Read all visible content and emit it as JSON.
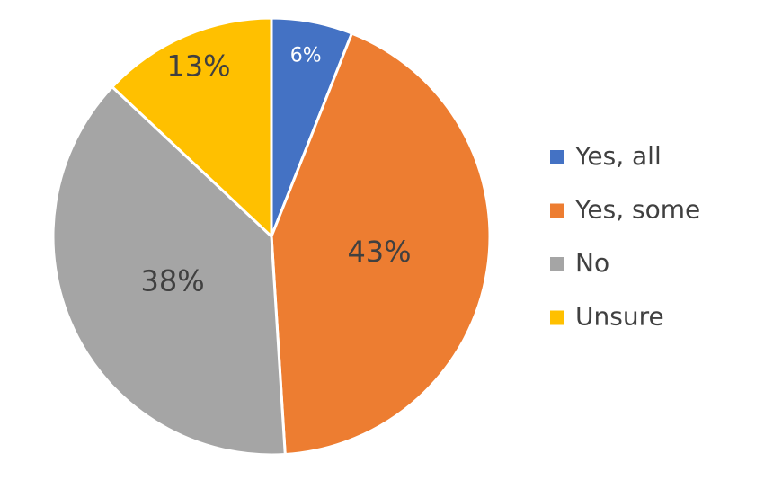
{
  "chart_data": {
    "type": "pie",
    "categories": [
      "Yes, all",
      "Yes, some",
      "No",
      "Unsure"
    ],
    "values": [
      6,
      43,
      38,
      13
    ],
    "value_labels": [
      "6%",
      "43%",
      "38%",
      "13%"
    ],
    "colors": [
      "#4472c4",
      "#ed7d31",
      "#a5a5a5",
      "#ffc000"
    ],
    "legend": "right"
  }
}
